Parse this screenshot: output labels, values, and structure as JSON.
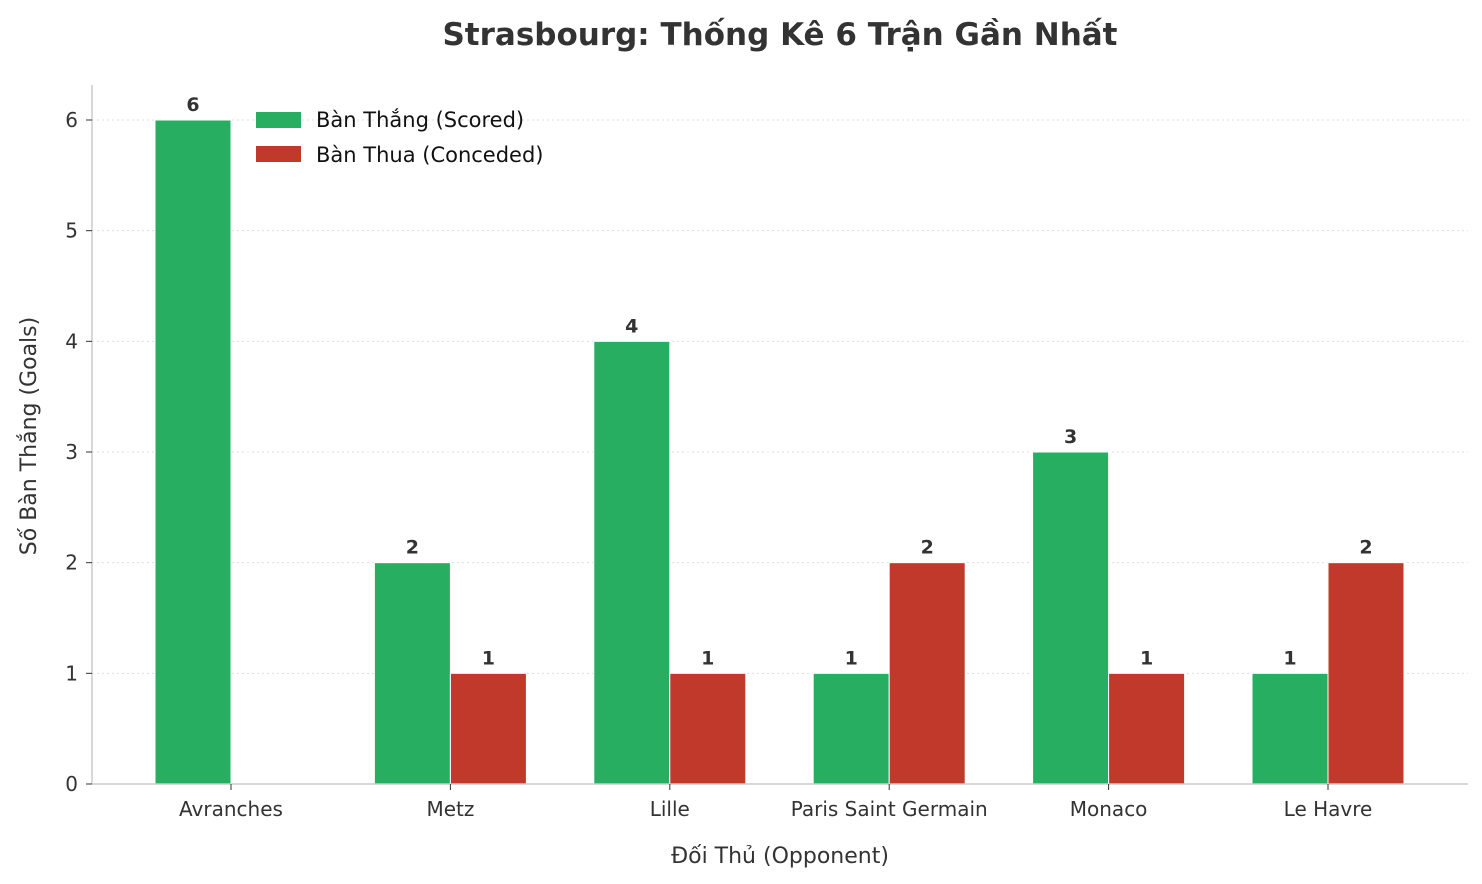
{
  "chart_data": {
    "type": "bar",
    "title": "Strasbourg: Thống Kê 6 Trận Gần Nhất",
    "xlabel": "Đối Thủ (Opponent)",
    "ylabel": "Số Bàn Thắng (Goals)",
    "categories": [
      "Avranches",
      "Metz",
      "Lille",
      "Paris Saint Germain",
      "Monaco",
      "Le Havre"
    ],
    "series": [
      {
        "name": "Bàn Thắng (Scored)",
        "color": "#27ae60",
        "values": [
          6,
          2,
          4,
          1,
          3,
          1
        ]
      },
      {
        "name": "Bàn Thua (Conceded)",
        "color": "#c0392b",
        "values": [
          0,
          1,
          1,
          2,
          1,
          2
        ]
      }
    ],
    "ylim": [
      0,
      6.3
    ],
    "yticks": [
      0,
      1,
      2,
      3,
      4,
      5,
      6
    ],
    "grid": "horizontal dotted",
    "legend": "top-left"
  }
}
